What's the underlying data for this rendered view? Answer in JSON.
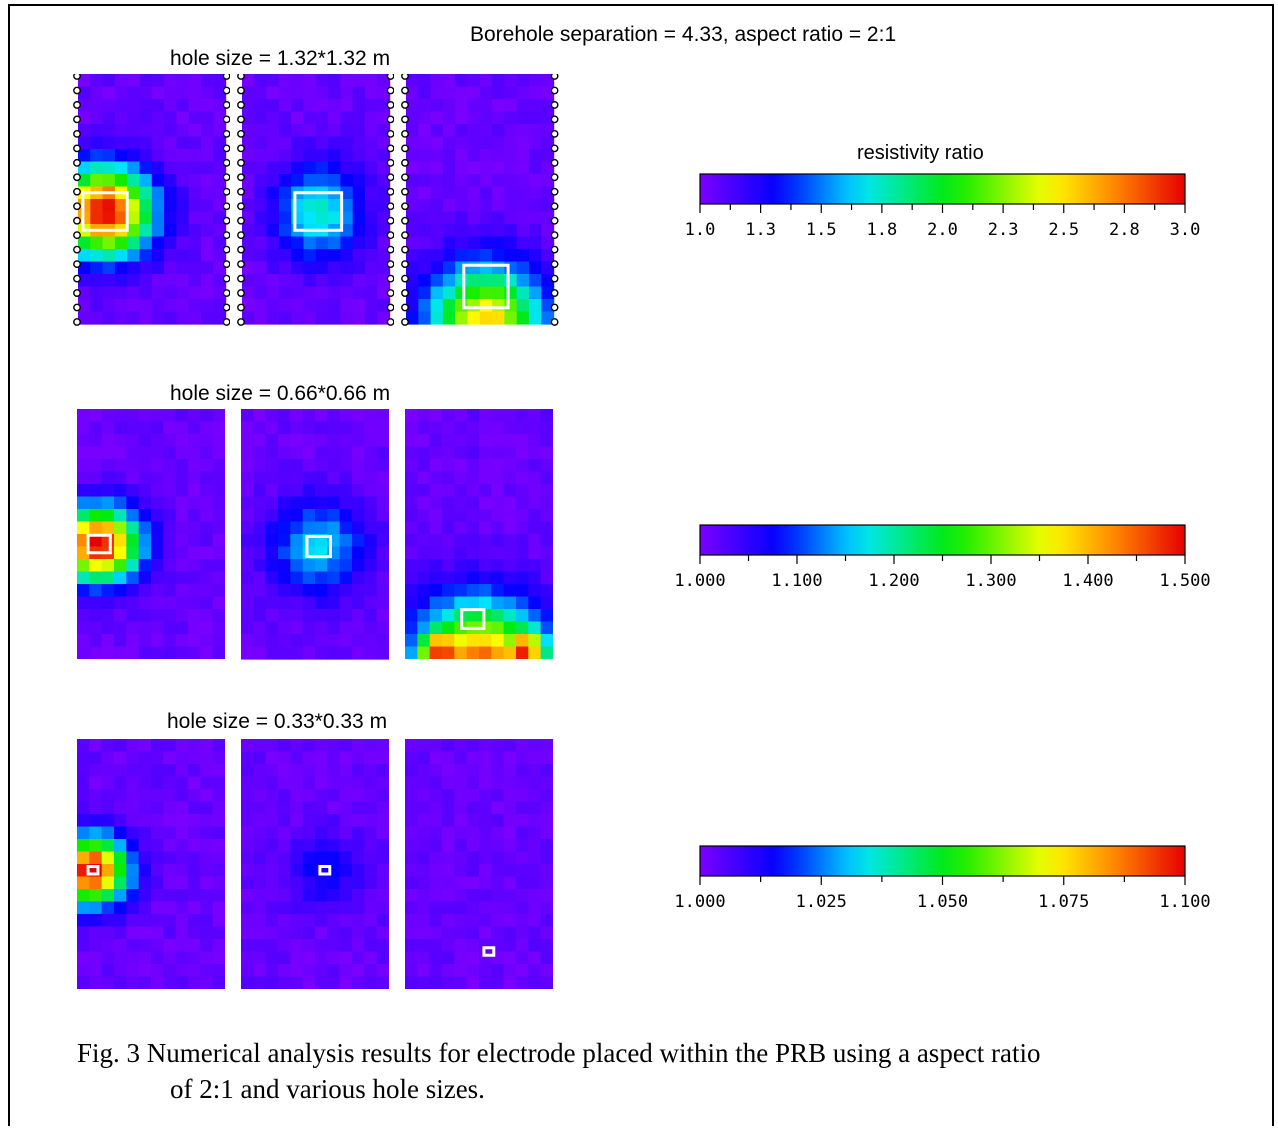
{
  "figure": {
    "top_title": "Borehole separation = 4.33, aspect ratio = 2:1",
    "rows": [
      {
        "hole_label": "hole size = 1.32*1.32 m"
      },
      {
        "hole_label": "hole size = 0.66*0.66 m"
      },
      {
        "hole_label": "hole size = 0.33*0.33 m"
      }
    ],
    "colorbars": [
      {
        "title": "resistivity ratio",
        "ticks": [
          "1.0",
          "1.3",
          "1.5",
          "1.8",
          "2.0",
          "2.3",
          "2.5",
          "2.8",
          "3.0"
        ],
        "range": [
          1.0,
          3.0
        ]
      },
      {
        "title": "",
        "ticks": [
          "1.000",
          "1.100",
          "1.200",
          "1.300",
          "1.400",
          "1.500"
        ],
        "range": [
          1.0,
          1.5
        ]
      },
      {
        "title": "",
        "ticks": [
          "1.000",
          "1.025",
          "1.050",
          "1.075",
          "1.100"
        ],
        "range": [
          1.0,
          1.1
        ]
      }
    ],
    "colors": {
      "background_ratio": "#7a00ff",
      "hole_outline": "#ffffff",
      "electrode": "#000000"
    }
  },
  "caption": {
    "line1": "Fig. 3  Numerical analysis results for electrode placed within the PRB using a aspect ratio",
    "line2": "of 2:1 and various hole sizes."
  }
}
